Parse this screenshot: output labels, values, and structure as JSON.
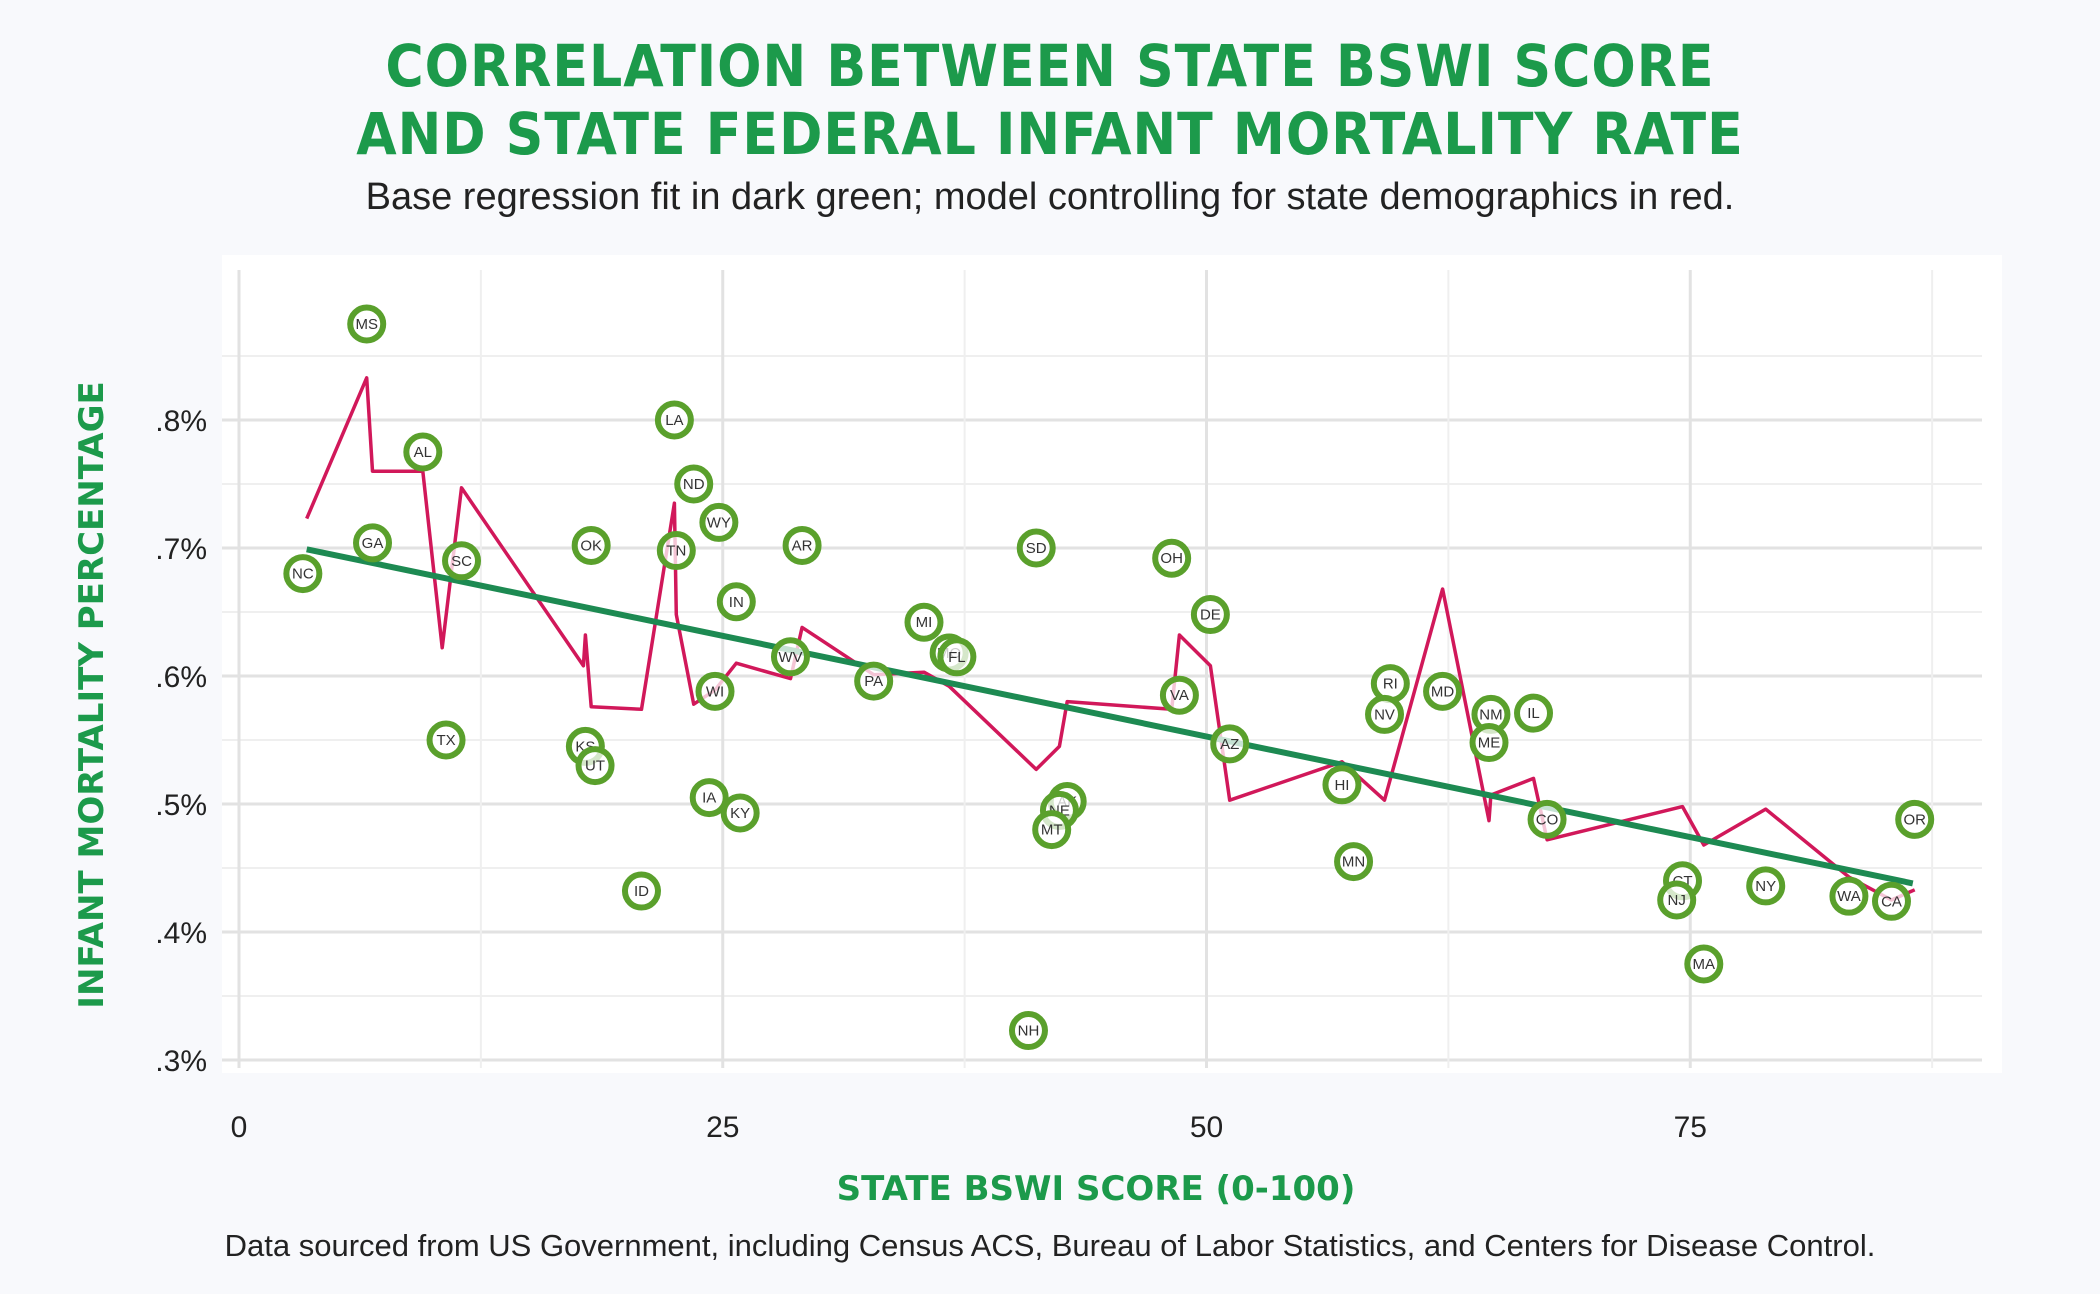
{
  "title_line1": "CORRELATION BETWEEN STATE BSWI SCORE",
  "title_line2": "AND STATE FEDERAL INFANT MORTALITY RATE",
  "subtitle": "Base regression fit in dark green; model controlling for state demographics in red.",
  "caption": "Data sourced from US Government, including Census ACS, Bureau of Labor Statistics, and Centers for Disease Control.",
  "colors": {
    "title": "#1c9a4b",
    "points": "#5aa02c",
    "base_fit": "#1d8a52",
    "controlled_fit": "#d1185a",
    "panel": "#ffffff"
  },
  "chart_data": {
    "type": "scatter",
    "xlabel": "STATE BSWI SCORE (0-100)",
    "ylabel": "INFANT MORTALITY PERCENTAGE",
    "xlim": [
      0,
      90
    ],
    "ylim": [
      0.29,
      0.9
    ],
    "x_ticks": [
      0,
      25,
      50,
      75
    ],
    "x_tick_labels": [
      "0",
      "25",
      "50",
      "75"
    ],
    "y_ticks": [
      0.3,
      0.4,
      0.5,
      0.6,
      0.7,
      0.8
    ],
    "y_tick_labels": [
      ".3%",
      ".4%",
      ".5%",
      ".6%",
      ".7%",
      ".8%"
    ],
    "grid": true,
    "points": [
      {
        "label": "MS",
        "x": 6.6,
        "y": 0.875
      },
      {
        "label": "NC",
        "x": 3.3,
        "y": 0.68
      },
      {
        "label": "GA",
        "x": 6.9,
        "y": 0.704
      },
      {
        "label": "AL",
        "x": 9.5,
        "y": 0.775
      },
      {
        "label": "SC",
        "x": 11.5,
        "y": 0.69
      },
      {
        "label": "TX",
        "x": 10.7,
        "y": 0.55
      },
      {
        "label": "OK",
        "x": 18.2,
        "y": 0.702
      },
      {
        "label": "KS",
        "x": 17.9,
        "y": 0.545
      },
      {
        "label": "UT",
        "x": 18.4,
        "y": 0.53
      },
      {
        "label": "ID",
        "x": 20.8,
        "y": 0.432
      },
      {
        "label": "LA",
        "x": 22.5,
        "y": 0.8
      },
      {
        "label": "TN",
        "x": 22.6,
        "y": 0.698
      },
      {
        "label": "ND",
        "x": 23.5,
        "y": 0.75
      },
      {
        "label": "WY",
        "x": 24.8,
        "y": 0.72
      },
      {
        "label": "IN",
        "x": 25.7,
        "y": 0.658
      },
      {
        "label": "WI",
        "x": 24.6,
        "y": 0.588
      },
      {
        "label": "IA",
        "x": 24.3,
        "y": 0.505
      },
      {
        "label": "KY",
        "x": 25.9,
        "y": 0.493
      },
      {
        "label": "AR",
        "x": 29.1,
        "y": 0.702
      },
      {
        "label": "WV",
        "x": 28.5,
        "y": 0.615
      },
      {
        "label": "PA",
        "x": 32.8,
        "y": 0.596
      },
      {
        "label": "MI",
        "x": 35.4,
        "y": 0.642
      },
      {
        "label": "MO",
        "x": 36.7,
        "y": 0.618
      },
      {
        "label": "FL",
        "x": 37.1,
        "y": 0.615
      },
      {
        "label": "SD",
        "x": 41.2,
        "y": 0.7
      },
      {
        "label": "NH",
        "x": 40.8,
        "y": 0.323
      },
      {
        "label": "AK",
        "x": 42.8,
        "y": 0.502
      },
      {
        "label": "NE",
        "x": 42.4,
        "y": 0.495
      },
      {
        "label": "MT",
        "x": 42.0,
        "y": 0.48
      },
      {
        "label": "OH",
        "x": 48.2,
        "y": 0.692
      },
      {
        "label": "VA",
        "x": 48.6,
        "y": 0.585
      },
      {
        "label": "DE",
        "x": 50.2,
        "y": 0.648
      },
      {
        "label": "AZ",
        "x": 51.2,
        "y": 0.547
      },
      {
        "label": "HI",
        "x": 57.0,
        "y": 0.515
      },
      {
        "label": "MN",
        "x": 57.6,
        "y": 0.455
      },
      {
        "label": "RI",
        "x": 59.5,
        "y": 0.594
      },
      {
        "label": "NV",
        "x": 59.2,
        "y": 0.57
      },
      {
        "label": "MD",
        "x": 62.2,
        "y": 0.588
      },
      {
        "label": "NM",
        "x": 64.7,
        "y": 0.57
      },
      {
        "label": "ME",
        "x": 64.6,
        "y": 0.548
      },
      {
        "label": "IL",
        "x": 66.9,
        "y": 0.571
      },
      {
        "label": "CO",
        "x": 67.6,
        "y": 0.488
      },
      {
        "label": "CT",
        "x": 74.6,
        "y": 0.44
      },
      {
        "label": "NJ",
        "x": 74.3,
        "y": 0.425
      },
      {
        "label": "MA",
        "x": 75.7,
        "y": 0.375
      },
      {
        "label": "NY",
        "x": 78.9,
        "y": 0.436
      },
      {
        "label": "WA",
        "x": 83.2,
        "y": 0.428
      },
      {
        "label": "CA",
        "x": 85.4,
        "y": 0.424
      },
      {
        "label": "OR",
        "x": 86.6,
        "y": 0.488
      }
    ],
    "series": [
      {
        "type": "line",
        "x": [
          3.5,
          86.5
        ],
        "y": [
          0.699,
          0.438
        ]
      },
      {
        "type": "line",
        "x": [
          3.5,
          6.6,
          6.9,
          9.5,
          10.5,
          11.5,
          17.8,
          17.9,
          18.2,
          20.8,
          22.5,
          22.6,
          23.5,
          24.6,
          25.7,
          28.5,
          29.1,
          32.8,
          35.4,
          36.7,
          41.2,
          42.4,
          42.8,
          48.2,
          48.6,
          50.2,
          51.2,
          57.0,
          59.2,
          62.2,
          64.6,
          64.7,
          66.9,
          67.6,
          74.6,
          75.7,
          78.9,
          83.2,
          85.4,
          86.6
        ],
        "y": [
          0.723,
          0.833,
          0.76,
          0.76,
          0.622,
          0.747,
          0.608,
          0.632,
          0.576,
          0.574,
          0.735,
          0.648,
          0.578,
          0.589,
          0.61,
          0.598,
          0.638,
          0.601,
          0.603,
          0.592,
          0.527,
          0.545,
          0.58,
          0.574,
          0.632,
          0.608,
          0.503,
          0.533,
          0.503,
          0.668,
          0.487,
          0.507,
          0.52,
          0.472,
          0.498,
          0.468,
          0.496,
          0.443,
          0.425,
          0.433
        ]
      }
    ]
  }
}
